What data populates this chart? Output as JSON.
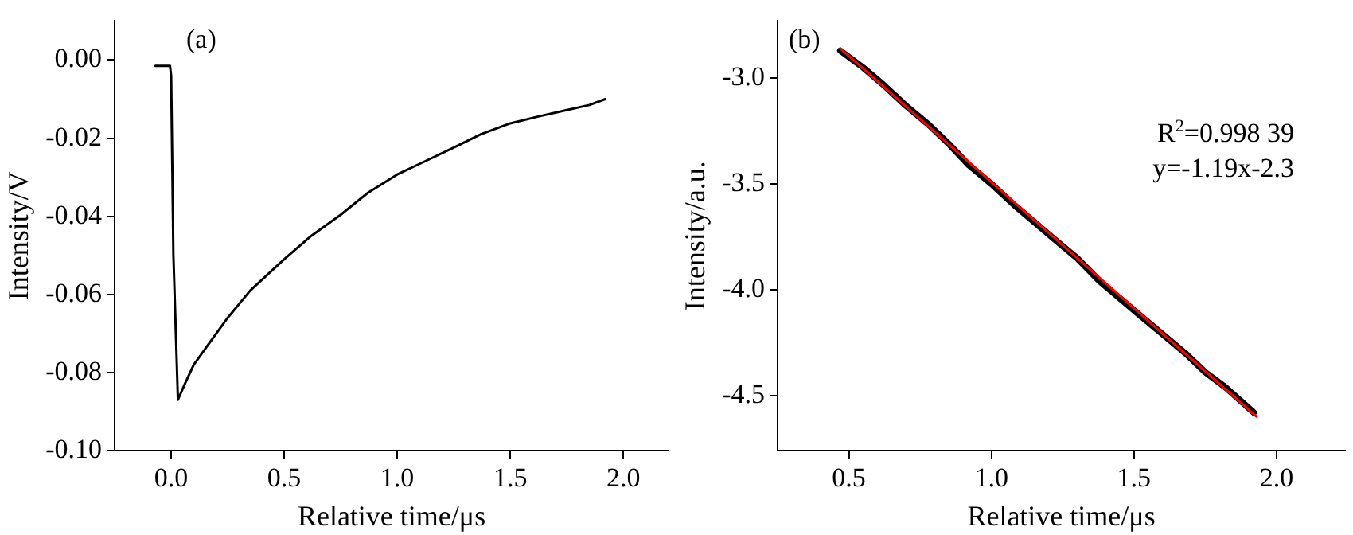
{
  "chart_data": [
    {
      "type": "line",
      "xlabel": "Relative time/μs",
      "ylabel": "Intensity/V",
      "annotations": [
        "(a)"
      ],
      "xlim": [
        -0.25,
        2.2
      ],
      "xticks": [
        {
          "value": 0,
          "label": "0.0"
        },
        {
          "value": 0.5,
          "label": "0.5"
        },
        {
          "value": 1,
          "label": "1.0"
        },
        {
          "value": 1.5,
          "label": "1.5"
        },
        {
          "value": 2,
          "label": "2.0"
        }
      ],
      "ylim": [
        -0.1,
        0.01
      ],
      "yticks": [
        {
          "value": 0,
          "label": "0.00"
        },
        {
          "value": -0.02,
          "label": "-0.02"
        },
        {
          "value": -0.04,
          "label": "-0.04"
        },
        {
          "value": -0.06,
          "label": "-0.06"
        },
        {
          "value": -0.08,
          "label": "-0.08"
        },
        {
          "value": -0.1,
          "label": "-0.10"
        }
      ],
      "grid": false,
      "legend": false,
      "marker": "none",
      "line_style": "solid",
      "series": [
        {
          "color": "#000000",
          "x": [
            -0.07,
            -0.03,
            -0.005,
            0.0,
            0.01,
            0.03,
            0.06,
            0.1,
            0.15,
            0.25,
            0.35,
            0.5,
            0.62,
            0.75,
            0.87,
            1.0,
            1.12,
            1.25,
            1.37,
            1.5,
            1.62,
            1.75,
            1.85,
            1.92
          ],
          "values": [
            -0.0015,
            -0.0015,
            -0.0015,
            -0.004,
            -0.05,
            -0.087,
            -0.083,
            -0.078,
            -0.074,
            -0.066,
            -0.059,
            -0.051,
            -0.045,
            -0.0396,
            -0.034,
            -0.0293,
            -0.026,
            -0.0224,
            -0.019,
            -0.0162,
            -0.0145,
            -0.0128,
            -0.0115,
            -0.01
          ]
        }
      ]
    },
    {
      "type": "line",
      "xlabel": "Relative time/μs",
      "ylabel": "Intensity/a.u.",
      "annotations": [
        "(b)",
        "R$^{2}$=0.998 39",
        "y=-1.19x-2.3"
      ],
      "xlim": [
        0.25,
        2.24
      ],
      "xticks": [
        {
          "value": 0.5,
          "label": "0.5"
        },
        {
          "value": 1,
          "label": "1.0"
        },
        {
          "value": 1.5,
          "label": "1.5"
        },
        {
          "value": 2,
          "label": "2.0"
        }
      ],
      "ylim": [
        -4.76,
        -2.73
      ],
      "yticks": [
        {
          "value": -3,
          "label": "-3.0"
        },
        {
          "value": -3.5,
          "label": "-3.5"
        },
        {
          "value": -4,
          "label": "-4.0"
        },
        {
          "value": -4.5,
          "label": "-4.5"
        }
      ],
      "grid": false,
      "legend": false,
      "marker": "none",
      "line_style": "solid",
      "series": [
        {
          "color": "#000000",
          "x": [
            0.47,
            0.55,
            0.62,
            0.7,
            0.78,
            0.85,
            0.92,
            1.0,
            1.08,
            1.15,
            1.22,
            1.3,
            1.38,
            1.45,
            1.52,
            1.6,
            1.68,
            1.75,
            1.82,
            1.92
          ],
          "values": [
            -2.87,
            -2.95,
            -3.03,
            -3.13,
            -3.22,
            -3.31,
            -3.41,
            -3.5,
            -3.6,
            -3.68,
            -3.76,
            -3.85,
            -3.96,
            -4.04,
            -4.12,
            -4.21,
            -4.3,
            -4.39,
            -4.46,
            -4.58
          ]
        },
        {
          "color": "#ff0000",
          "x": [
            0.47,
            1.93
          ],
          "values": [
            -2.86,
            -4.6
          ]
        }
      ]
    }
  ]
}
